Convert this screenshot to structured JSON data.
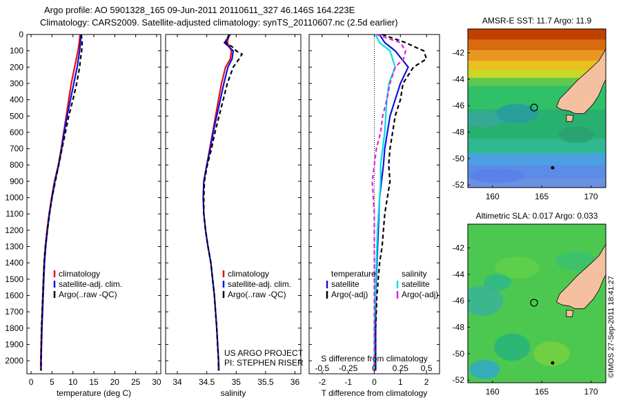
{
  "header": {
    "line1": "Argo profile: AO 5901328_165 09-Jun-2011 20110611_327 46.146S 164.223E",
    "line2": "Climatology: CARS2009. Satellite-adjusted climatology: synTS_20110607.nc (2.5d earlier)"
  },
  "colors": {
    "climatology": "#e01010",
    "satellite": "#1010e0",
    "argo": "#000000",
    "sal_sat": "#00e0e0",
    "sal_argo": "#e020e0"
  },
  "chart_data": [
    {
      "type": "line",
      "id": "temperature",
      "xlabel": "temperature (deg C)",
      "ylabel": "",
      "xlim": [
        -1,
        31
      ],
      "ylim": [
        2080,
        0
      ],
      "xticks": [
        "0",
        "5",
        "10",
        "15",
        "20",
        "25",
        "30"
      ],
      "yticks": [
        "0",
        "100",
        "200",
        "300",
        "400",
        "500",
        "600",
        "700",
        "800",
        "900",
        "1000",
        "1100",
        "1200",
        "1300",
        "1400",
        "1500",
        "1600",
        "1700",
        "1800",
        "1900",
        "2000"
      ],
      "legend": [
        "climatology",
        "satellite-adj. clim.",
        "Argo(..raw -QC)"
      ],
      "series": [
        {
          "name": "climatology",
          "depth": [
            0,
            50,
            100,
            200,
            300,
            400,
            500,
            600,
            700,
            800,
            900,
            1000,
            1100,
            1200,
            1300,
            1400,
            1600,
            1800,
            2000,
            2060
          ],
          "values": [
            11.7,
            11.5,
            11.2,
            10.4,
            9.6,
            9.0,
            8.4,
            7.8,
            7.2,
            6.5,
            5.6,
            4.9,
            4.3,
            3.8,
            3.4,
            3.1,
            2.8,
            2.5,
            2.3,
            2.3
          ]
        },
        {
          "name": "satellite-adj. clim.",
          "depth": [
            0,
            50,
            100,
            200,
            300,
            400,
            500,
            600,
            700,
            800,
            900,
            1000,
            1100,
            1200,
            1300,
            1400,
            1600,
            1800,
            2000,
            2060
          ],
          "values": [
            11.9,
            11.8,
            11.6,
            11.0,
            10.2,
            9.4,
            8.6,
            7.9,
            7.3,
            6.6,
            5.7,
            5.0,
            4.4,
            3.9,
            3.5,
            3.2,
            2.9,
            2.6,
            2.4,
            2.4
          ]
        },
        {
          "name": "Argo(..raw -QC)",
          "depth": [
            0,
            50,
            100,
            150,
            200,
            300,
            400,
            500,
            600,
            700,
            800,
            900,
            1000,
            1100,
            1200,
            1300,
            1400,
            1600,
            1800,
            2000,
            2060
          ],
          "values": [
            12.0,
            12.2,
            12.1,
            11.8,
            11.6,
            10.9,
            10.0,
            9.0,
            8.2,
            7.4,
            6.6,
            5.8,
            5.0,
            4.4,
            3.9,
            3.4,
            3.1,
            2.8,
            2.5,
            2.4,
            2.4
          ]
        }
      ]
    },
    {
      "type": "line",
      "id": "salinity",
      "xlabel": "salinity",
      "xlim": [
        33.8,
        36.1
      ],
      "ylim": [
        2080,
        0
      ],
      "xticks": [
        "34",
        "34.5",
        "35",
        "35.5",
        "36"
      ],
      "legend": [
        "climatology",
        "satellite-adj. clim.",
        "Argo(..raw -QC)"
      ],
      "annotation": [
        "US ARGO PROJECT",
        "PI: STEPHEN RISER"
      ],
      "series": [
        {
          "name": "climatology",
          "depth": [
            0,
            50,
            100,
            150,
            200,
            300,
            400,
            500,
            600,
            700,
            800,
            900,
            1000,
            1100,
            1200,
            1300,
            1400,
            1600,
            1800,
            2000,
            2060
          ],
          "values": [
            34.88,
            34.85,
            34.92,
            34.9,
            34.82,
            34.75,
            34.7,
            34.65,
            34.6,
            34.55,
            34.5,
            34.45,
            34.44,
            34.45,
            34.48,
            34.52,
            34.57,
            34.63,
            34.67,
            34.7,
            34.71
          ]
        },
        {
          "name": "satellite-adj. clim.",
          "depth": [
            0,
            50,
            100,
            150,
            200,
            300,
            400,
            500,
            600,
            700,
            800,
            900,
            1000,
            1100,
            1200,
            1300,
            1400,
            1600,
            1800,
            2000,
            2060
          ],
          "values": [
            34.9,
            34.8,
            34.95,
            34.93,
            34.86,
            34.79,
            34.73,
            34.67,
            34.61,
            34.56,
            34.5,
            34.45,
            34.44,
            34.45,
            34.48,
            34.52,
            34.57,
            34.63,
            34.67,
            34.7,
            34.7
          ]
        },
        {
          "name": "Argo(..raw -QC)",
          "depth": [
            0,
            50,
            80,
            100,
            120,
            150,
            200,
            300,
            400,
            500,
            600,
            700,
            800,
            900,
            1000,
            1100,
            1200,
            1300,
            1400,
            1600,
            1800,
            2000,
            2060
          ],
          "values": [
            34.88,
            34.82,
            34.95,
            35.0,
            35.1,
            35.05,
            34.95,
            34.85,
            34.78,
            34.71,
            34.64,
            34.58,
            34.51,
            34.46,
            34.45,
            34.45,
            34.48,
            34.52,
            34.57,
            34.63,
            34.67,
            34.7,
            34.7
          ]
        }
      ]
    },
    {
      "type": "line",
      "id": "differences",
      "xlabel": "T difference from climatology",
      "top_xlabel": "S difference from climatology",
      "xlim": [
        -2.5,
        2.5
      ],
      "ylim": [
        2080,
        0
      ],
      "xticks": [
        "-2",
        "-1",
        "0",
        "1",
        "2"
      ],
      "top_xticks": [
        "-0.5",
        "-0.25",
        "0",
        "0.25",
        "0.5"
      ],
      "legend_left_title": "temperature",
      "legend_right_title": "salinity",
      "legend": [
        "satellite",
        "Argo(-adj)",
        "satellite",
        "Argo(-adj)"
      ],
      "series": [
        {
          "name": "T satellite",
          "depth": [
            0,
            50,
            100,
            200,
            300,
            400,
            500,
            600,
            700,
            800,
            1000,
            1200,
            1400,
            1600,
            1800,
            2000,
            2060
          ],
          "values": [
            0.2,
            0.4,
            0.8,
            1.3,
            1.0,
            0.8,
            0.6,
            0.5,
            0.4,
            0.35,
            0.2,
            0.15,
            0.1,
            0.05,
            0.05,
            0.05,
            0.05
          ]
        },
        {
          "name": "T Argo(-adj)",
          "depth": [
            0,
            50,
            80,
            100,
            150,
            200,
            300,
            400,
            500,
            600,
            700,
            800,
            900,
            1000,
            1100,
            1200,
            1300,
            1400,
            1600,
            1800,
            2000,
            2060
          ],
          "values": [
            0.3,
            1.2,
            1.6,
            1.9,
            2.0,
            1.5,
            1.1,
            1.0,
            0.8,
            0.7,
            0.6,
            0.55,
            0.6,
            0.5,
            0.4,
            0.35,
            0.3,
            0.2,
            0.1,
            0.05,
            0.05,
            0.05
          ]
        },
        {
          "name": "S satellite",
          "depth": [
            0,
            50,
            100,
            200,
            300,
            400,
            500,
            600,
            700,
            800,
            900,
            1000,
            1200,
            1400,
            1600,
            1800,
            2000,
            2060
          ],
          "values": [
            0.01,
            0.05,
            0.15,
            0.2,
            0.14,
            0.12,
            0.11,
            0.1,
            0.08,
            0.06,
            0.06,
            0.05,
            0.03,
            0.02,
            0.01,
            0.0,
            0.0,
            0.0
          ]
        },
        {
          "name": "S Argo(-adj)",
          "depth": [
            0,
            50,
            100,
            150,
            200,
            300,
            400,
            500,
            600,
            700,
            800,
            900,
            1000,
            1100,
            1200,
            1400,
            1600,
            1800,
            2000,
            2060
          ],
          "values": [
            0.02,
            0.25,
            0.3,
            0.28,
            0.2,
            0.15,
            0.12,
            0.08,
            0.06,
            0.02,
            0.0,
            -0.02,
            -0.01,
            0.0,
            0.0,
            0.0,
            0.0,
            0.0,
            0.0,
            0.0
          ]
        }
      ]
    }
  ],
  "maps": {
    "sst": {
      "title": "AMSR-E SST: 11.7 Argo: 11.9",
      "yticks": [
        "-42",
        "-44",
        "-46",
        "-48",
        "-50",
        "-52"
      ],
      "xticks": [
        "160",
        "165",
        "170"
      ],
      "lon_range": [
        157.5,
        171.5
      ],
      "lat_range": [
        -52.2,
        -40.2
      ],
      "float_lon": 164.223,
      "float_lat": -46.146
    },
    "sla": {
      "title": "Altimetric SLA: 0.017 Argo: 0.033",
      "yticks": [
        "-42",
        "-44",
        "-46",
        "-48",
        "-50",
        "-52"
      ],
      "xticks": [
        "160",
        "165",
        "170"
      ],
      "lon_range": [
        157.5,
        171.5
      ],
      "lat_range": [
        -52.2,
        -40.2
      ],
      "float_lon": 164.223,
      "float_lat": -46.146
    }
  },
  "watermark": "©IMOS 27-Sep-2011 18:41:27"
}
